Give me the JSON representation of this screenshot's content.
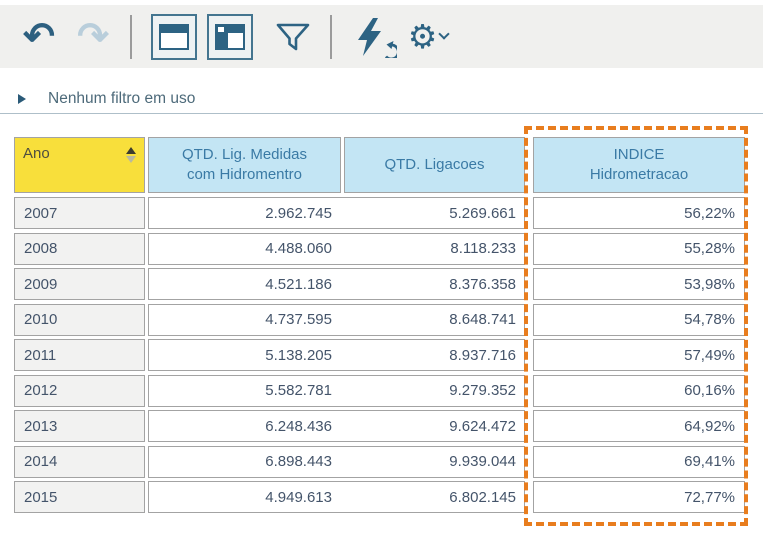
{
  "toolbar": {
    "undo_icon_glyph": "↶",
    "redo_icon_glyph": "↷",
    "buttons": [
      "undo",
      "redo",
      "layout-titlebar",
      "layout-sidebar",
      "filter",
      "refresh-data",
      "settings"
    ]
  },
  "filter_bar": {
    "label": "Nenhum filtro em uso"
  },
  "table": {
    "header": {
      "ano": "Ano",
      "col2_line1": "QTD. Lig.  Medidas",
      "col2_line2": "com Hidromentro",
      "col3": "QTD. Ligacoes",
      "col4_line1": "INDICE",
      "col4_line2": "Hidrometracao"
    },
    "rows": [
      {
        "ano": "2007",
        "medidas": "2.962.745",
        "ligacoes": "5.269.661",
        "indice": "56,22%"
      },
      {
        "ano": "2008",
        "medidas": "4.488.060",
        "ligacoes": "8.118.233",
        "indice": "55,28%"
      },
      {
        "ano": "2009",
        "medidas": "4.521.186",
        "ligacoes": "8.376.358",
        "indice": "53,98%"
      },
      {
        "ano": "2010",
        "medidas": "4.737.595",
        "ligacoes": "8.648.741",
        "indice": "54,78%"
      },
      {
        "ano": "2011",
        "medidas": "5.138.205",
        "ligacoes": "8.937.716",
        "indice": "57,49%"
      },
      {
        "ano": "2012",
        "medidas": "5.582.781",
        "ligacoes": "9.279.352",
        "indice": "60,16%"
      },
      {
        "ano": "2013",
        "medidas": "6.248.436",
        "ligacoes": "9.624.472",
        "indice": "64,92%"
      },
      {
        "ano": "2014",
        "medidas": "6.898.443",
        "ligacoes": "9.939.044",
        "indice": "69,41%"
      },
      {
        "ano": "2015",
        "medidas": "4.949.613",
        "ligacoes": "6.802.145",
        "indice": "72,77%"
      }
    ]
  },
  "colors": {
    "highlight_orange": "#e87d1e",
    "header_yellow": "#f8df3b",
    "header_blue": "#c3e5f4",
    "icon_blue": "#2d6383",
    "text_slate": "#44546a"
  }
}
